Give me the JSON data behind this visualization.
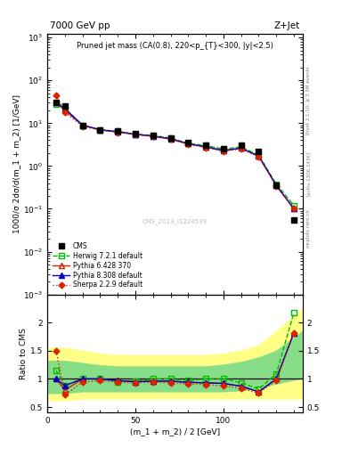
{
  "title_left": "7000 GeV pp",
  "title_right": "Z+Jet",
  "right_label": "Rivet 3.1.10, ≥ 3.5M events",
  "arxiv_label": "[arXiv:1306.3436]",
  "mcplots_label": "mcplots.cern.ch",
  "annotation": "Pruned jet mass (CA(0.8), 220<p_{T}<300, |y|<2.5)",
  "cms_label": "CMS_2013_I1224539",
  "ylabel_main": "1000/σ 2dσ/d(m_1 + m_2) [1/GeV]",
  "ylabel_ratio": "Ratio to CMS",
  "xlabel": "(m_1 + m_2) / 2 [GeV]",
  "xlim": [
    0,
    145
  ],
  "ylim_main": [
    0.001,
    1200
  ],
  "ylim_ratio": [
    0.4,
    2.5
  ],
  "cms_x": [
    5,
    10,
    20,
    30,
    40,
    50,
    60,
    70,
    80,
    90,
    100,
    110,
    120,
    130,
    140
  ],
  "cms_y": [
    30,
    25,
    9,
    7,
    6.5,
    5.8,
    5.2,
    4.5,
    3.5,
    3.0,
    2.5,
    3.0,
    2.2,
    0.35,
    0.055
  ],
  "herwig_x": [
    5,
    10,
    20,
    30,
    40,
    50,
    60,
    70,
    80,
    90,
    100,
    110,
    120,
    130,
    140
  ],
  "herwig_y": [
    28,
    22,
    9,
    7,
    6.5,
    5.5,
    5.2,
    4.5,
    3.4,
    3.0,
    2.5,
    2.8,
    1.8,
    0.38,
    0.12
  ],
  "pythia6_x": [
    5,
    10,
    20,
    30,
    40,
    50,
    60,
    70,
    80,
    90,
    100,
    110,
    120,
    130,
    140
  ],
  "pythia6_y": [
    30,
    20,
    9,
    7,
    6.3,
    5.5,
    5.0,
    4.3,
    3.3,
    2.8,
    2.3,
    2.6,
    1.7,
    0.35,
    0.1
  ],
  "pythia8_x": [
    5,
    10,
    20,
    30,
    40,
    50,
    60,
    70,
    80,
    90,
    100,
    110,
    120,
    130,
    140
  ],
  "pythia8_y": [
    30,
    22,
    9,
    7,
    6.3,
    5.5,
    5.0,
    4.3,
    3.3,
    2.8,
    2.3,
    2.6,
    1.7,
    0.35,
    0.1
  ],
  "sherpa_x": [
    5,
    10,
    20,
    30,
    40,
    50,
    60,
    70,
    80,
    90,
    100,
    110,
    120,
    130,
    140
  ],
  "sherpa_y": [
    45,
    18,
    8.5,
    6.8,
    6.1,
    5.4,
    4.9,
    4.2,
    3.2,
    2.7,
    2.2,
    2.5,
    1.65,
    0.34,
    0.1
  ],
  "ratio_x": [
    5,
    10,
    20,
    30,
    40,
    50,
    60,
    70,
    80,
    90,
    100,
    110,
    120,
    130,
    140
  ],
  "ratio_herwig": [
    1.15,
    0.88,
    1.0,
    1.0,
    0.95,
    0.96,
    1.0,
    1.0,
    0.97,
    1.0,
    1.0,
    0.93,
    0.82,
    1.09,
    2.18
  ],
  "ratio_pythia6": [
    1.0,
    0.8,
    1.0,
    1.0,
    0.97,
    0.95,
    0.96,
    0.96,
    0.94,
    0.93,
    0.92,
    0.87,
    0.77,
    1.0,
    1.82
  ],
  "ratio_pythia8": [
    1.0,
    0.88,
    1.0,
    1.0,
    0.97,
    0.95,
    0.96,
    0.96,
    0.94,
    0.93,
    0.92,
    0.87,
    0.77,
    1.0,
    1.82
  ],
  "ratio_sherpa": [
    1.5,
    0.72,
    0.94,
    0.97,
    0.94,
    0.93,
    0.94,
    0.93,
    0.91,
    0.9,
    0.88,
    0.83,
    0.75,
    0.97,
    1.82
  ],
  "yellow_band_x": [
    0,
    10,
    20,
    30,
    40,
    50,
    60,
    70,
    80,
    90,
    100,
    110,
    120,
    130,
    145
  ],
  "yellow_band_lo": [
    0.62,
    0.62,
    0.65,
    0.65,
    0.65,
    0.65,
    0.65,
    0.65,
    0.65,
    0.65,
    0.65,
    0.65,
    0.65,
    0.65,
    0.65
  ],
  "yellow_band_hi": [
    1.55,
    1.55,
    1.5,
    1.45,
    1.42,
    1.42,
    1.42,
    1.42,
    1.42,
    1.42,
    1.45,
    1.5,
    1.6,
    1.85,
    2.25
  ],
  "green_band_x": [
    0,
    10,
    20,
    30,
    40,
    50,
    60,
    70,
    80,
    90,
    100,
    110,
    120,
    130,
    145
  ],
  "green_band_lo": [
    0.75,
    0.75,
    0.78,
    0.78,
    0.78,
    0.78,
    0.78,
    0.78,
    0.78,
    0.78,
    0.78,
    0.8,
    0.85,
    0.92,
    1.02
  ],
  "green_band_hi": [
    1.32,
    1.32,
    1.28,
    1.24,
    1.22,
    1.22,
    1.22,
    1.22,
    1.22,
    1.22,
    1.25,
    1.3,
    1.38,
    1.5,
    1.85
  ],
  "color_cms": "black",
  "color_herwig": "#00bb00",
  "color_pythia6": "#cc2200",
  "color_pythia8": "#0000cc",
  "color_sherpa": "#dd2200",
  "yellow_color": "#ffff88",
  "green_color": "#88dd88"
}
